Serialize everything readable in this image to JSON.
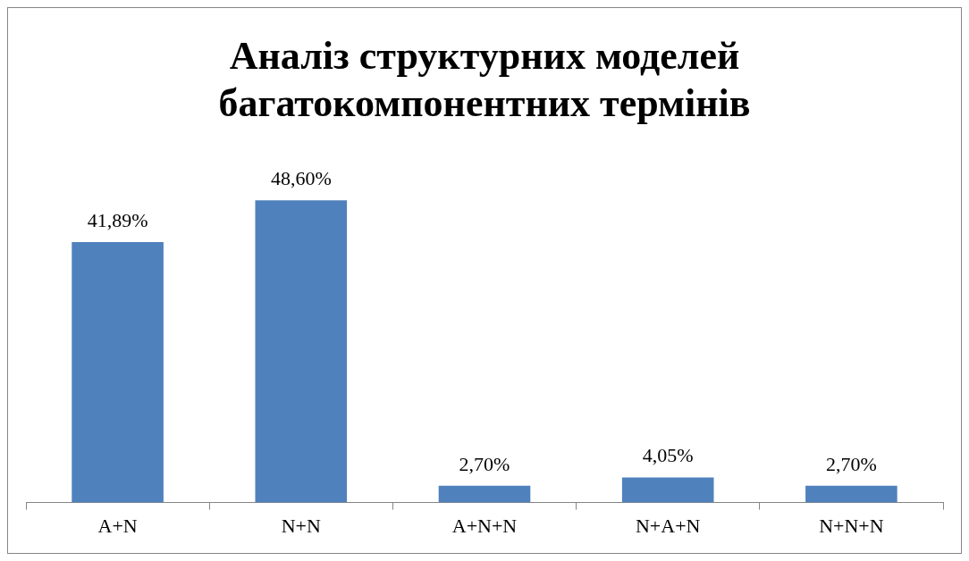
{
  "chart_data": {
    "type": "bar",
    "title": [
      "Аналіз структурних моделей",
      "багатокомпонентних термінів"
    ],
    "categories": [
      "A+N",
      "N+N",
      "A+N+N",
      "N+A+N",
      "N+N+N"
    ],
    "values": [
      41.89,
      48.6,
      2.7,
      4.05,
      2.7
    ],
    "value_labels": [
      "41,89%",
      "48,60%",
      "2,70%",
      "4,05%",
      "2,70%"
    ],
    "color": "#4f81bd",
    "grid": false,
    "legend": false,
    "tick_labels": "x"
  }
}
